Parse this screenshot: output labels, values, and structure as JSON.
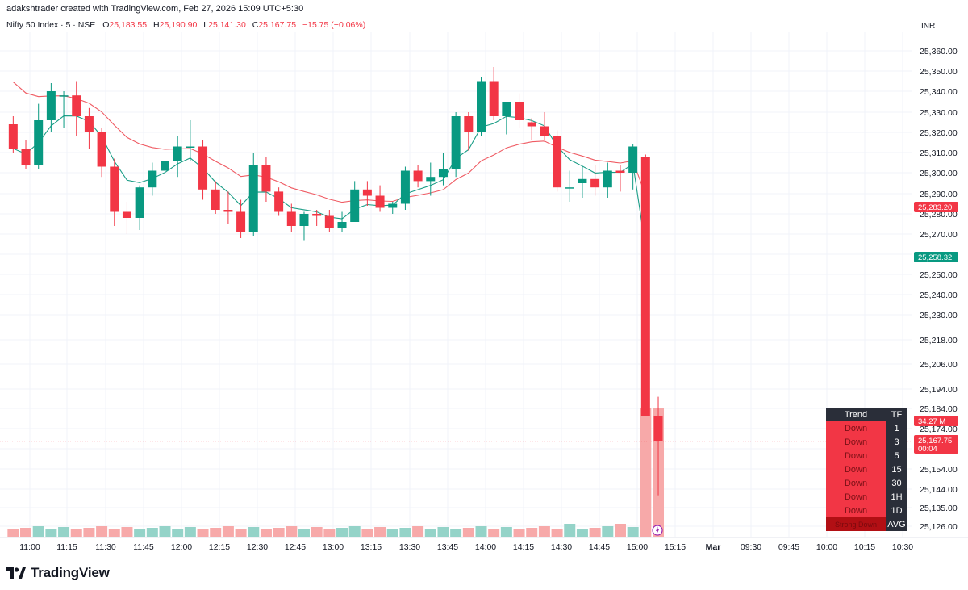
{
  "header": {
    "credit": "adakshtrader created with TradingView.com, Feb 27, 2026 15:09 UTC+5:30",
    "symbol": "Nifty 50 Index · 5 · NSE",
    "o_label": "O",
    "o_value": "25,183.55",
    "h_label": "H",
    "h_value": "25,190.90",
    "l_label": "L",
    "l_value": "25,141.30",
    "c_label": "C",
    "c_value": "25,167.75",
    "change": "−15.75 (−0.06%)"
  },
  "currency": "INR",
  "footer": {
    "brand": "TradingView"
  },
  "colors": {
    "up": "#089981",
    "down": "#f23645",
    "vol_up": "#94d3c8",
    "vol_down": "#f7a9a9",
    "ma_fast": "#1a9d86",
    "ma_slow": "#ef5b63"
  },
  "trend_table": {
    "headers": [
      "Trend",
      "TF"
    ],
    "rows": [
      {
        "trend": "Down",
        "tf": "1"
      },
      {
        "trend": "Down",
        "tf": "3"
      },
      {
        "trend": "Down",
        "tf": "5"
      },
      {
        "trend": "Down",
        "tf": "15"
      },
      {
        "trend": "Down",
        "tf": "30"
      },
      {
        "trend": "Down",
        "tf": "1H"
      },
      {
        "trend": "Down",
        "tf": "1D"
      }
    ],
    "avg_label": "Strong Down",
    "avg_tf": "AVG"
  },
  "chart_data": {
    "type": "candlestick",
    "y_ticks": [
      "25,360.00",
      "25,350.00",
      "25,340.00",
      "25,330.00",
      "25,320.00",
      "25,310.00",
      "25,300.00",
      "25,290.00",
      "25,280.00",
      "25,270.00",
      "25,260.00",
      "25,250.00",
      "25,240.00",
      "25,230.00",
      "25,218.00",
      "25,206.00",
      "25,194.00",
      "25,184.00",
      "25,174.00",
      "25,164.00",
      "25,154.00",
      "25,144.00",
      "25,135.00",
      "25,126.00"
    ],
    "x_ticks": [
      "11:00",
      "11:15",
      "11:30",
      "11:45",
      "12:00",
      "12:15",
      "12:30",
      "12:45",
      "13:00",
      "13:15",
      "13:30",
      "13:45",
      "14:00",
      "14:15",
      "14:30",
      "14:45",
      "15:00",
      "15:15",
      "Mar",
      "09:30",
      "09:45",
      "10:00",
      "10:15",
      "10:30"
    ],
    "candles": [
      {
        "o": 25324,
        "h": 25328,
        "l": 25310,
        "c": 25312
      },
      {
        "o": 25312,
        "h": 25316,
        "l": 25302,
        "c": 25304
      },
      {
        "o": 25304,
        "h": 25334,
        "l": 25302,
        "c": 25326
      },
      {
        "o": 25326,
        "h": 25344,
        "l": 25320,
        "c": 25340
      },
      {
        "o": 25338,
        "h": 25340,
        "l": 25322,
        "c": 25338
      },
      {
        "o": 25338,
        "h": 25345,
        "l": 25318,
        "c": 25328
      },
      {
        "o": 25328,
        "h": 25332,
        "l": 25312,
        "c": 25320
      },
      {
        "o": 25320,
        "h": 25322,
        "l": 25298,
        "c": 25303
      },
      {
        "o": 25303,
        "h": 25307,
        "l": 25274,
        "c": 25281
      },
      {
        "o": 25281,
        "h": 25286,
        "l": 25270,
        "c": 25278
      },
      {
        "o": 25278,
        "h": 25294,
        "l": 25272,
        "c": 25293
      },
      {
        "o": 25293,
        "h": 25305,
        "l": 25289,
        "c": 25301
      },
      {
        "o": 25301,
        "h": 25311,
        "l": 25296,
        "c": 25306
      },
      {
        "o": 25306,
        "h": 25318,
        "l": 25298,
        "c": 25313
      },
      {
        "o": 25313,
        "h": 25326,
        "l": 25306,
        "c": 25313
      },
      {
        "o": 25313,
        "h": 25316,
        "l": 25287,
        "c": 25292
      },
      {
        "o": 25292,
        "h": 25296,
        "l": 25280,
        "c": 25282
      },
      {
        "o": 25282,
        "h": 25291,
        "l": 25275,
        "c": 25281
      },
      {
        "o": 25281,
        "h": 25287,
        "l": 25268,
        "c": 25271
      },
      {
        "o": 25271,
        "h": 25310,
        "l": 25269,
        "c": 25304
      },
      {
        "o": 25304,
        "h": 25308,
        "l": 25286,
        "c": 25291
      },
      {
        "o": 25291,
        "h": 25293,
        "l": 25279,
        "c": 25281
      },
      {
        "o": 25281,
        "h": 25285,
        "l": 25271,
        "c": 25274
      },
      {
        "o": 25274,
        "h": 25281,
        "l": 25267,
        "c": 25280
      },
      {
        "o": 25280,
        "h": 25282,
        "l": 25274,
        "c": 25279
      },
      {
        "o": 25279,
        "h": 25282,
        "l": 25271,
        "c": 25273
      },
      {
        "o": 25273,
        "h": 25281,
        "l": 25271,
        "c": 25276
      },
      {
        "o": 25276,
        "h": 25296,
        "l": 25276,
        "c": 25292
      },
      {
        "o": 25292,
        "h": 25296,
        "l": 25284,
        "c": 25289
      },
      {
        "o": 25289,
        "h": 25294,
        "l": 25281,
        "c": 25283
      },
      {
        "o": 25283,
        "h": 25286,
        "l": 25280,
        "c": 25285
      },
      {
        "o": 25285,
        "h": 25303,
        "l": 25282,
        "c": 25301
      },
      {
        "o": 25301,
        "h": 25304,
        "l": 25293,
        "c": 25296
      },
      {
        "o": 25296,
        "h": 25305,
        "l": 25289,
        "c": 25298
      },
      {
        "o": 25298,
        "h": 25310,
        "l": 25294,
        "c": 25302
      },
      {
        "o": 25302,
        "h": 25330,
        "l": 25298,
        "c": 25328
      },
      {
        "o": 25328,
        "h": 25330,
        "l": 25311,
        "c": 25320
      },
      {
        "o": 25320,
        "h": 25347,
        "l": 25318,
        "c": 25345
      },
      {
        "o": 25345,
        "h": 25352,
        "l": 25326,
        "c": 25328
      },
      {
        "o": 25328,
        "h": 25334,
        "l": 25319,
        "c": 25335
      },
      {
        "o": 25335,
        "h": 25339,
        "l": 25322,
        "c": 25326
      },
      {
        "o": 25325,
        "h": 25327,
        "l": 25316,
        "c": 25323
      },
      {
        "o": 25323,
        "h": 25330,
        "l": 25316,
        "c": 25318
      },
      {
        "o": 25318,
        "h": 25321,
        "l": 25291,
        "c": 25293
      },
      {
        "o": 25293,
        "h": 25301,
        "l": 25286,
        "c": 25293
      },
      {
        "o": 25295,
        "h": 25303,
        "l": 25288,
        "c": 25297
      },
      {
        "o": 25297,
        "h": 25304,
        "l": 25289,
        "c": 25293
      },
      {
        "o": 25293,
        "h": 25305,
        "l": 25288,
        "c": 25301
      },
      {
        "o": 25301,
        "h": 25304,
        "l": 25291,
        "c": 25300
      },
      {
        "o": 25300,
        "h": 25314,
        "l": 25292,
        "c": 25313
      },
      {
        "o": 25308,
        "h": 25309,
        "l": 25180,
        "c": 25180
      },
      {
        "o": 25180,
        "h": 25190,
        "l": 25141,
        "c": 25167.75
      }
    ],
    "ma_fast_label": "25,258.32",
    "ma_slow_label": "25,283.20",
    "volume_label": "34.27 M",
    "last_price_label": "25,167.75",
    "countdown": "00:04"
  }
}
